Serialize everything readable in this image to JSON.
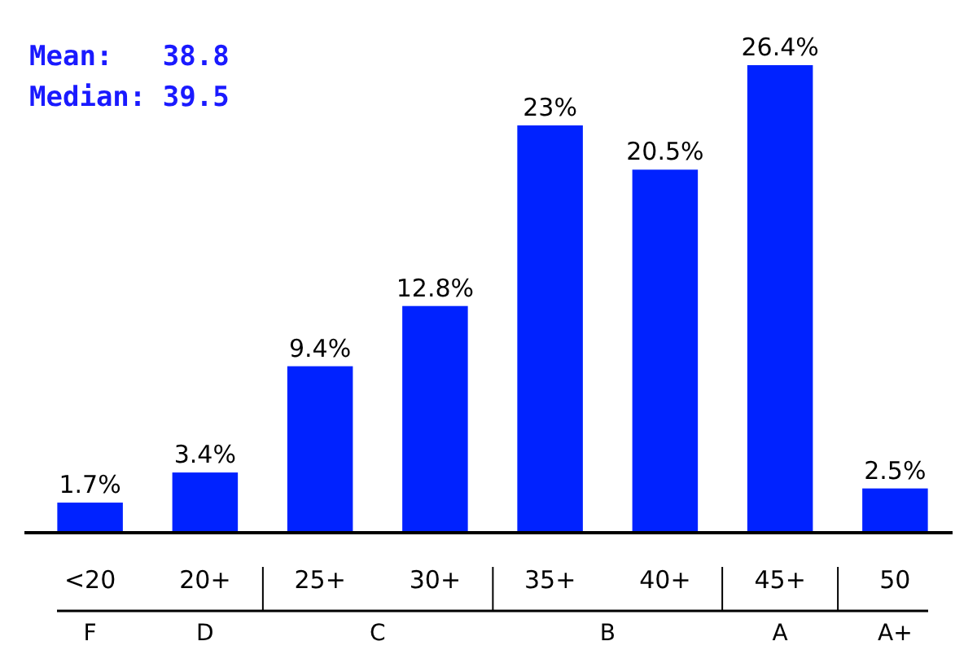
{
  "chart_data": {
    "type": "bar",
    "categories": [
      "<20",
      "20+",
      "25+",
      "30+",
      "35+",
      "40+",
      "45+",
      "50"
    ],
    "values": [
      1.7,
      3.4,
      9.4,
      12.8,
      23,
      20.5,
      26.4,
      2.5
    ],
    "value_labels": [
      "1.7%",
      "3.4%",
      "9.4%",
      "12.8%",
      "23%",
      "20.5%",
      "26.4%",
      "2.5%"
    ],
    "color": "#0022ff",
    "annotations": [
      "Mean:   38.8",
      "Median: 39.5",
      "F",
      "D",
      "C",
      "B",
      "A",
      "A+"
    ]
  }
}
